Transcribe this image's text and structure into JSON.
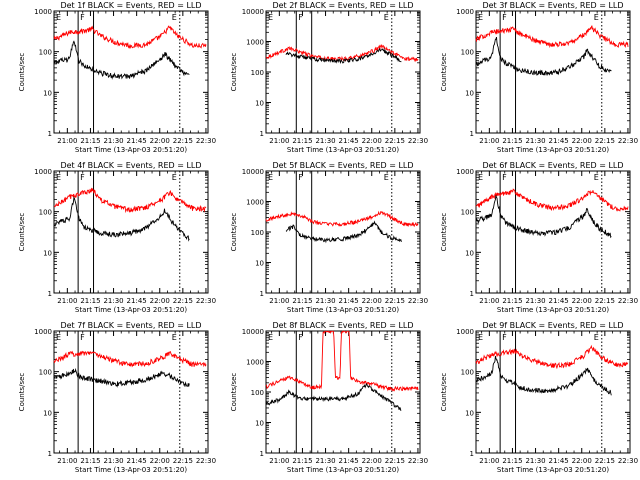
{
  "colors": {
    "events": "#000000",
    "lld": "#ff0000",
    "frame": "#000000"
  },
  "common": {
    "ylabel": "Counts/sec",
    "xlabel": "Start Time (13-Apr-03 20:51:20)",
    "markers": [
      "E",
      "F",
      "E"
    ]
  },
  "chart_data": [
    {
      "type": "line",
      "title": "Det 1f BLACK = Events, RED = LLD",
      "xlabel": "Start Time (13-Apr-03 20:51:20)",
      "ylabel": "Counts/sec",
      "scale": "log",
      "ylim": [
        1,
        1000
      ],
      "yticks": [
        "1",
        "10",
        "100",
        "1000"
      ],
      "xticks": [
        "21:00",
        "21:15",
        "21:30",
        "21:45",
        "22:00",
        "22:15",
        "22:30"
      ],
      "vlines_solid": [
        "21:07",
        "21:17"
      ],
      "vline_dotted": "22:13",
      "lld_key": [
        [
          0,
          200
        ],
        [
          10,
          300
        ],
        [
          20,
          330
        ],
        [
          25,
          360
        ],
        [
          30,
          250
        ],
        [
          40,
          170
        ],
        [
          50,
          140
        ],
        [
          60,
          150
        ],
        [
          70,
          250
        ],
        [
          75,
          400
        ],
        [
          80,
          250
        ],
        [
          90,
          140
        ],
        [
          99,
          140
        ]
      ],
      "events_key": [
        [
          0,
          55
        ],
        [
          10,
          65
        ],
        [
          13,
          200
        ],
        [
          16,
          60
        ],
        [
          20,
          45
        ],
        [
          30,
          30
        ],
        [
          40,
          25
        ],
        [
          50,
          25
        ],
        [
          60,
          35
        ],
        [
          70,
          70
        ],
        [
          72,
          90
        ],
        [
          76,
          60
        ],
        [
          80,
          40
        ],
        [
          88,
          25
        ]
      ]
    },
    {
      "type": "line",
      "title": "Det 2f BLACK = Events, RED = LLD",
      "xlabel": "Start Time (13-Apr-03 20:51:20)",
      "ylabel": "Counts/sec",
      "scale": "log",
      "ylim": [
        1,
        10000
      ],
      "yticks": [
        "1",
        "10",
        "100",
        "1000",
        "10000"
      ],
      "xticks": [
        "21:00",
        "21:15",
        "21:30",
        "21:45",
        "22:00",
        "22:15",
        "22:30"
      ],
      "vlines_solid": [
        "21:11",
        "21:21"
      ],
      "vline_dotted": "22:13",
      "lld_key": [
        [
          0,
          300
        ],
        [
          15,
          600
        ],
        [
          20,
          500
        ],
        [
          30,
          330
        ],
        [
          40,
          270
        ],
        [
          50,
          270
        ],
        [
          60,
          330
        ],
        [
          70,
          500
        ],
        [
          75,
          700
        ],
        [
          80,
          500
        ],
        [
          90,
          270
        ],
        [
          99,
          270
        ]
      ],
      "events_key": [
        [
          13,
          400
        ],
        [
          20,
          350
        ],
        [
          30,
          270
        ],
        [
          40,
          230
        ],
        [
          50,
          230
        ],
        [
          60,
          260
        ],
        [
          70,
          400
        ],
        [
          75,
          550
        ],
        [
          80,
          400
        ],
        [
          88,
          230
        ]
      ]
    },
    {
      "type": "line",
      "title": "Det 3f BLACK = Events, RED = LLD",
      "xlabel": "Start Time (13-Apr-03 20:51:20)",
      "ylabel": "Counts/sec",
      "scale": "log",
      "ylim": [
        1,
        1000
      ],
      "yticks": [
        "1",
        "10",
        "100",
        "1000"
      ],
      "xticks": [
        "21:00",
        "21:15",
        "21:30",
        "21:45",
        "22:00",
        "22:15",
        "22:30"
      ],
      "vlines_solid": [
        "21:07",
        "21:17"
      ],
      "vline_dotted": "22:13",
      "lld_key": [
        [
          0,
          200
        ],
        [
          10,
          300
        ],
        [
          20,
          340
        ],
        [
          25,
          360
        ],
        [
          30,
          260
        ],
        [
          40,
          180
        ],
        [
          50,
          150
        ],
        [
          60,
          160
        ],
        [
          70,
          260
        ],
        [
          75,
          400
        ],
        [
          80,
          260
        ],
        [
          90,
          150
        ],
        [
          99,
          150
        ]
      ],
      "events_key": [
        [
          0,
          50
        ],
        [
          10,
          70
        ],
        [
          13,
          230
        ],
        [
          16,
          70
        ],
        [
          20,
          50
        ],
        [
          30,
          35
        ],
        [
          40,
          30
        ],
        [
          50,
          30
        ],
        [
          60,
          40
        ],
        [
          70,
          75
        ],
        [
          72,
          110
        ],
        [
          76,
          70
        ],
        [
          80,
          45
        ],
        [
          88,
          30
        ]
      ]
    },
    {
      "type": "line",
      "title": "Det 4f BLACK = Events, RED = LLD",
      "xlabel": "Start Time (13-Apr-03 20:51:20)",
      "ylabel": "Counts/sec",
      "scale": "log",
      "ylim": [
        1,
        1000
      ],
      "yticks": [
        "1",
        "10",
        "100",
        "1000"
      ],
      "xticks": [
        "21:00",
        "21:15",
        "21:30",
        "21:45",
        "22:00",
        "22:15",
        "22:30"
      ],
      "vlines_solid": [
        "21:07",
        "21:17"
      ],
      "vline_dotted": "22:13",
      "lld_key": [
        [
          0,
          130
        ],
        [
          10,
          230
        ],
        [
          20,
          300
        ],
        [
          25,
          350
        ],
        [
          30,
          200
        ],
        [
          40,
          130
        ],
        [
          50,
          110
        ],
        [
          60,
          130
        ],
        [
          70,
          200
        ],
        [
          75,
          300
        ],
        [
          80,
          200
        ],
        [
          90,
          120
        ],
        [
          99,
          120
        ]
      ],
      "events_key": [
        [
          0,
          50
        ],
        [
          10,
          70
        ],
        [
          13,
          220
        ],
        [
          16,
          70
        ],
        [
          20,
          40
        ],
        [
          30,
          30
        ],
        [
          40,
          27
        ],
        [
          50,
          30
        ],
        [
          60,
          40
        ],
        [
          70,
          80
        ],
        [
          72,
          110
        ],
        [
          76,
          60
        ],
        [
          80,
          40
        ],
        [
          88,
          22
        ]
      ]
    },
    {
      "type": "line",
      "title": "Det 5f BLACK = Events, RED = LLD",
      "xlabel": "Start Time (13-Apr-03 20:51:20)",
      "ylabel": "Counts/sec",
      "scale": "log",
      "ylim": [
        1,
        10000
      ],
      "yticks": [
        "1",
        "10",
        "100",
        "1000",
        "10000"
      ],
      "xticks": [
        "21:00",
        "21:15",
        "21:30",
        "21:45",
        "22:00",
        "22:15",
        "22:30"
      ],
      "vlines_solid": [
        "21:11",
        "21:21"
      ],
      "vline_dotted": "22:13",
      "lld_key": [
        [
          0,
          250
        ],
        [
          15,
          400
        ],
        [
          20,
          380
        ],
        [
          25,
          300
        ],
        [
          30,
          220
        ],
        [
          40,
          180
        ],
        [
          50,
          180
        ],
        [
          60,
          220
        ],
        [
          70,
          330
        ],
        [
          75,
          450
        ],
        [
          80,
          330
        ],
        [
          90,
          180
        ],
        [
          99,
          180
        ]
      ],
      "events_key": [
        [
          13,
          120
        ],
        [
          18,
          150
        ],
        [
          22,
          80
        ],
        [
          30,
          60
        ],
        [
          40,
          55
        ],
        [
          50,
          60
        ],
        [
          60,
          80
        ],
        [
          68,
          150
        ],
        [
          70,
          200
        ],
        [
          75,
          100
        ],
        [
          80,
          70
        ],
        [
          88,
          50
        ]
      ]
    },
    {
      "type": "line",
      "title": "Det 6f BLACK = Events, RED = LLD",
      "xlabel": "Start Time (13-Apr-03 20:51:20)",
      "ylabel": "Counts/sec",
      "scale": "log",
      "ylim": [
        1,
        1000
      ],
      "yticks": [
        "1",
        "10",
        "100",
        "1000"
      ],
      "xticks": [
        "21:00",
        "21:15",
        "21:30",
        "21:45",
        "22:00",
        "22:15",
        "22:30"
      ],
      "vlines_solid": [
        "21:07",
        "21:17"
      ],
      "vline_dotted": "22:13",
      "lld_key": [
        [
          0,
          130
        ],
        [
          10,
          230
        ],
        [
          20,
          300
        ],
        [
          25,
          320
        ],
        [
          30,
          220
        ],
        [
          40,
          150
        ],
        [
          50,
          120
        ],
        [
          60,
          140
        ],
        [
          70,
          220
        ],
        [
          75,
          330
        ],
        [
          80,
          220
        ],
        [
          90,
          120
        ],
        [
          99,
          120
        ]
      ],
      "events_key": [
        [
          0,
          60
        ],
        [
          10,
          80
        ],
        [
          13,
          250
        ],
        [
          16,
          80
        ],
        [
          20,
          50
        ],
        [
          30,
          35
        ],
        [
          40,
          30
        ],
        [
          50,
          30
        ],
        [
          60,
          40
        ],
        [
          70,
          80
        ],
        [
          72,
          110
        ],
        [
          76,
          60
        ],
        [
          80,
          40
        ],
        [
          88,
          25
        ]
      ]
    },
    {
      "type": "line",
      "title": "Det 7f BLACK = Events, RED = LLD",
      "xlabel": "Start Time (13-Apr-03 20:51:20)",
      "ylabel": "Counts/sec",
      "scale": "log",
      "ylim": [
        1,
        1000
      ],
      "yticks": [
        "1",
        "10",
        "100",
        "1000"
      ],
      "xticks": [
        "21:00",
        "21:15",
        "21:30",
        "21:45",
        "22:00",
        "22:15",
        "22:30"
      ],
      "vlines_solid": [
        "21:07",
        "21:17"
      ],
      "vline_dotted": "22:13",
      "lld_key": [
        [
          0,
          180
        ],
        [
          10,
          270
        ],
        [
          20,
          290
        ],
        [
          25,
          300
        ],
        [
          30,
          240
        ],
        [
          40,
          180
        ],
        [
          50,
          150
        ],
        [
          60,
          160
        ],
        [
          70,
          220
        ],
        [
          75,
          280
        ],
        [
          80,
          220
        ],
        [
          90,
          150
        ],
        [
          99,
          150
        ]
      ],
      "events_key": [
        [
          0,
          70
        ],
        [
          10,
          90
        ],
        [
          13,
          110
        ],
        [
          16,
          80
        ],
        [
          20,
          70
        ],
        [
          30,
          60
        ],
        [
          40,
          50
        ],
        [
          50,
          55
        ],
        [
          60,
          65
        ],
        [
          70,
          90
        ],
        [
          75,
          80
        ],
        [
          80,
          60
        ],
        [
          88,
          45
        ]
      ]
    },
    {
      "type": "line",
      "title": "Det 8f BLACK = Events, RED = LLD",
      "xlabel": "Start Time (13-Apr-03 20:51:20)",
      "ylabel": "Counts/sec",
      "scale": "log",
      "ylim": [
        1,
        10000
      ],
      "yticks": [
        "1",
        "10",
        "100",
        "1000",
        "10000"
      ],
      "xticks": [
        "21:00",
        "21:15",
        "21:30",
        "21:45",
        "22:00",
        "22:15",
        "22:30"
      ],
      "vlines_solid": [
        "21:11",
        "21:21"
      ],
      "vline_dotted": "22:13",
      "lld_key": [
        [
          0,
          150
        ],
        [
          15,
          300
        ],
        [
          20,
          250
        ],
        [
          25,
          180
        ],
        [
          30,
          140
        ],
        [
          36,
          150
        ],
        [
          37,
          10000
        ],
        [
          44,
          10000
        ],
        [
          45,
          300
        ],
        [
          48,
          300
        ],
        [
          49,
          10000
        ],
        [
          54,
          10000
        ],
        [
          55,
          300
        ],
        [
          60,
          220
        ],
        [
          70,
          180
        ],
        [
          75,
          150
        ],
        [
          80,
          130
        ],
        [
          90,
          130
        ],
        [
          99,
          130
        ]
      ],
      "events_key": [
        [
          0,
          40
        ],
        [
          10,
          60
        ],
        [
          15,
          100
        ],
        [
          18,
          80
        ],
        [
          22,
          60
        ],
        [
          30,
          60
        ],
        [
          40,
          60
        ],
        [
          50,
          60
        ],
        [
          60,
          90
        ],
        [
          65,
          180
        ],
        [
          70,
          110
        ],
        [
          80,
          50
        ],
        [
          88,
          25
        ]
      ]
    },
    {
      "type": "line",
      "title": "Det 9f BLACK = Events, RED = LLD",
      "xlabel": "Start Time (13-Apr-03 20:51:20)",
      "ylabel": "Counts/sec",
      "scale": "log",
      "ylim": [
        1,
        1000
      ],
      "yticks": [
        "1",
        "10",
        "100",
        "1000"
      ],
      "xticks": [
        "21:00",
        "21:15",
        "21:30",
        "21:45",
        "22:00",
        "22:15",
        "22:30"
      ],
      "vlines_solid": [
        "21:07",
        "21:17"
      ],
      "vline_dotted": "22:13",
      "lld_key": [
        [
          0,
          170
        ],
        [
          10,
          260
        ],
        [
          20,
          300
        ],
        [
          25,
          320
        ],
        [
          30,
          240
        ],
        [
          40,
          170
        ],
        [
          50,
          140
        ],
        [
          60,
          150
        ],
        [
          70,
          250
        ],
        [
          75,
          400
        ],
        [
          80,
          250
        ],
        [
          90,
          150
        ],
        [
          99,
          150
        ]
      ],
      "events_key": [
        [
          0,
          60
        ],
        [
          10,
          90
        ],
        [
          13,
          250
        ],
        [
          16,
          80
        ],
        [
          20,
          60
        ],
        [
          30,
          40
        ],
        [
          40,
          35
        ],
        [
          50,
          35
        ],
        [
          60,
          45
        ],
        [
          70,
          90
        ],
        [
          72,
          120
        ],
        [
          76,
          70
        ],
        [
          80,
          45
        ],
        [
          88,
          30
        ]
      ]
    }
  ]
}
